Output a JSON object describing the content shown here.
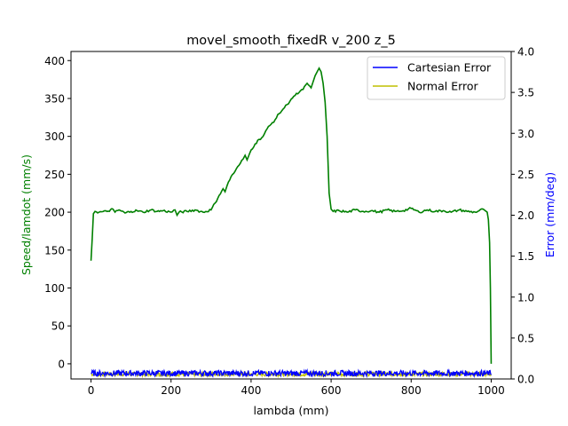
{
  "chart_data": {
    "type": "line",
    "title": "movel_smooth_fixedR v_200 z_5",
    "xlabel": "lambda (mm)",
    "ylabel_left": "Speed/lamdot (mm/s)",
    "ylabel_right": "Error (mm/deg)",
    "xlim": [
      -50,
      1050
    ],
    "ylim_left": [
      -20,
      412
    ],
    "ylim_right": [
      0,
      4
    ],
    "xticks": [
      0,
      200,
      400,
      600,
      800,
      1000
    ],
    "yticks_left": [
      0,
      50,
      100,
      150,
      200,
      250,
      300,
      350,
      400
    ],
    "yticks_right": [
      0.0,
      0.5,
      1.0,
      1.5,
      2.0,
      2.5,
      3.0,
      3.5,
      4.0
    ],
    "grid": false,
    "legend_position": "top-right",
    "colors": {
      "speed": "#008000",
      "cartesian": "#0000ff",
      "normal": "#bfbf00",
      "ylabel_left": "#008000",
      "ylabel_right": "#0000ff"
    },
    "legend": [
      "Cartesian Error",
      "Normal Error"
    ],
    "series": [
      {
        "name": "",
        "axis": "left",
        "color": "#008000",
        "x": [
          0,
          3,
          6,
          10,
          20,
          40,
          55,
          60,
          70,
          85,
          100,
          115,
          130,
          150,
          165,
          180,
          200,
          210,
          215,
          220,
          240,
          260,
          280,
          300,
          310,
          320,
          330,
          335,
          340,
          350,
          360,
          370,
          380,
          385,
          390,
          400,
          410,
          420,
          430,
          440,
          450,
          460,
          470,
          480,
          490,
          500,
          510,
          520,
          530,
          540,
          550,
          555,
          560,
          565,
          570,
          575,
          580,
          585,
          590,
          595,
          600,
          605,
          620,
          640,
          660,
          680,
          700,
          720,
          740,
          760,
          780,
          800,
          820,
          840,
          860,
          880,
          900,
          920,
          940,
          960,
          980,
          990,
          993,
          996,
          998,
          1000
        ],
        "y": [
          136,
          165,
          198,
          201,
          200,
          201,
          204,
          200,
          203,
          199,
          201,
          202,
          200,
          203,
          201,
          202,
          200,
          203,
          196,
          200,
          201,
          203,
          200,
          203,
          212,
          222,
          231,
          227,
          235,
          247,
          254,
          262,
          270,
          275,
          269,
          282,
          290,
          296,
          300,
          310,
          316,
          322,
          330,
          336,
          342,
          349,
          354,
          358,
          362,
          370,
          364,
          372,
          380,
          385,
          390,
          385,
          370,
          345,
          300,
          225,
          204,
          201,
          202,
          200,
          203,
          201,
          202,
          200,
          203,
          201,
          202,
          205,
          200,
          203,
          201,
          202,
          200,
          203,
          201,
          200,
          204,
          200,
          190,
          160,
          100,
          0
        ]
      }
    ],
    "error_series": [
      {
        "name": "Cartesian Error",
        "color": "#0000ff",
        "x_range": [
          0,
          1000
        ],
        "base": 0.07,
        "amplitude": 0.035
      },
      {
        "name": "Normal Error",
        "color": "#bfbf00",
        "x_range": [
          0,
          1000
        ],
        "base": 0.06,
        "amplitude": 0.025
      }
    ]
  }
}
